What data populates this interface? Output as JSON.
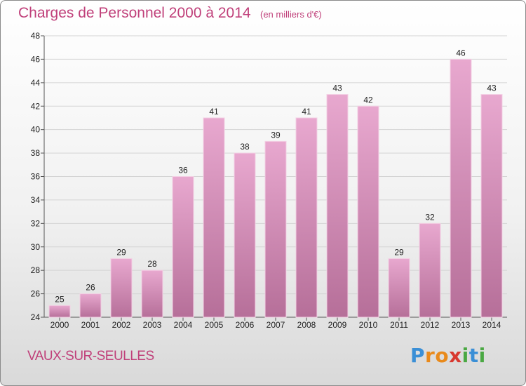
{
  "header": {
    "title": "Charges de Personnel 2000 à 2014",
    "subtitle": "(en milliers d'€)"
  },
  "footer": {
    "city": "VAUX-SUR-SEULLES",
    "logo": {
      "text": "Proxiti",
      "letters": [
        {
          "char": "P",
          "color": "#3a8fd6"
        },
        {
          "char": "r",
          "color": "#e98a1b"
        },
        {
          "char": "o",
          "color": "#e98a1b"
        },
        {
          "char": "x",
          "color": "#d8382f"
        },
        {
          "char": "i",
          "color": "#4aa843"
        },
        {
          "char": "t",
          "color": "#3a8fd6"
        },
        {
          "char": "i",
          "color": "#4aa843"
        }
      ]
    }
  },
  "colors": {
    "accent": "#c0407a",
    "bar_light": "#e8a8cf",
    "bar_dark": "#b66f99"
  },
  "chart_data": {
    "type": "bar",
    "title": "Charges de Personnel 2000 à 2014",
    "subtitle": "(en milliers d'€)",
    "categories": [
      "2000",
      "2001",
      "2002",
      "2003",
      "2004",
      "2005",
      "2006",
      "2007",
      "2008",
      "2009",
      "2010",
      "2011",
      "2012",
      "2013",
      "2014"
    ],
    "values": [
      25,
      26,
      29,
      28,
      36,
      41,
      38,
      39,
      41,
      43,
      42,
      29,
      32,
      46,
      43
    ],
    "ylim": [
      24,
      48
    ],
    "yticks": [
      24,
      26,
      28,
      30,
      32,
      34,
      36,
      38,
      40,
      42,
      44,
      46,
      48
    ],
    "grid": true,
    "xlabel": "",
    "ylabel": ""
  }
}
